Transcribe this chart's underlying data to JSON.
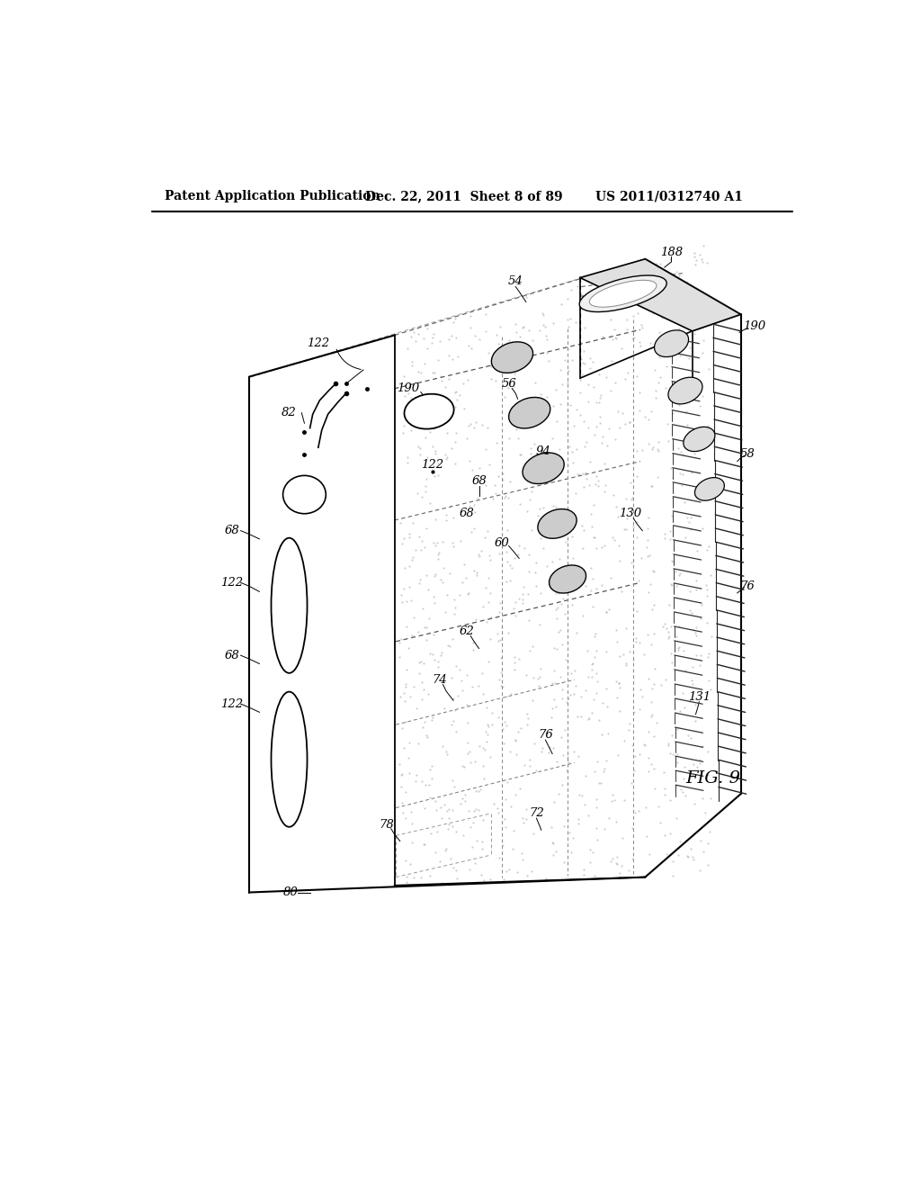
{
  "title_left": "Patent Application Publication",
  "title_mid": "Dec. 22, 2011  Sheet 8 of 89",
  "title_right": "US 2011/0312740 A1",
  "fig_label": "FIG. 9",
  "bg_color": "#ffffff"
}
